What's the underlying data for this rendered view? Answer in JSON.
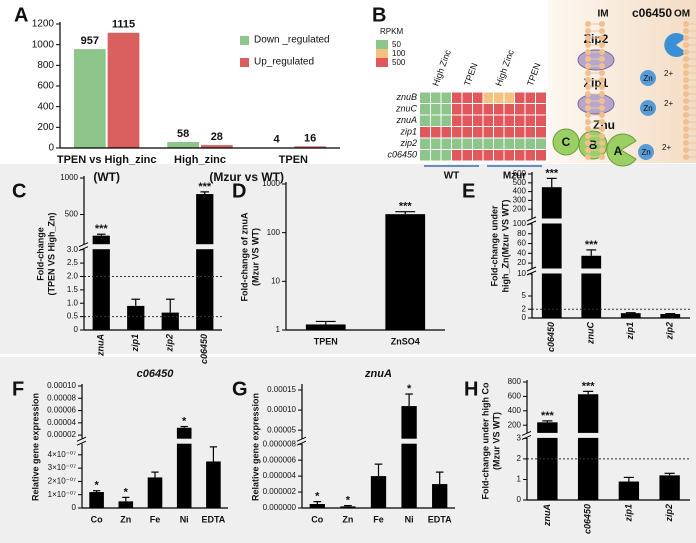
{
  "chart_data": [
    {
      "type": "bar",
      "label": "A",
      "groups": [
        {
          "label": "(WT)",
          "categories": [
            "TPEN vs High_zinc"
          ]
        },
        {
          "label": "(Mzur vs WT)",
          "categories": [
            "High_zinc",
            "TPEN"
          ]
        }
      ],
      "series": [
        {
          "name": "Down _regulated",
          "color": "#8dc58a",
          "values": [
            957,
            58,
            4
          ]
        },
        {
          "name": "Up_regulated",
          "color": "#d9605f",
          "values": [
            1115,
            28,
            16
          ]
        }
      ],
      "ylim": [
        0,
        1200
      ],
      "yticks": [
        0,
        200,
        400,
        600,
        800,
        1000,
        1200
      ],
      "legend": "upper right",
      "show_values": true
    },
    {
      "type": "heatmap",
      "label": "B",
      "rows": [
        "znuB",
        "znuC",
        "znuA",
        "zip1",
        "zip2",
        "c06450"
      ],
      "groups": [
        {
          "label": "WT",
          "columns": [
            "High Zinc",
            "TPEN"
          ]
        },
        {
          "label": "Mzur",
          "columns": [
            "High Zinc",
            "TPEN"
          ]
        }
      ],
      "values": [
        [
          50,
          500,
          100,
          500
        ],
        [
          50,
          500,
          500,
          500
        ],
        [
          50,
          500,
          500,
          500
        ],
        [
          500,
          500,
          500,
          500
        ],
        [
          50,
          50,
          50,
          50
        ],
        [
          50,
          500,
          500,
          500
        ]
      ],
      "legend_title": "RPKM",
      "scale": [
        {
          "value": 50,
          "color": "#8dc58a"
        },
        {
          "value": 100,
          "color": "#f4c27f"
        },
        {
          "value": 500,
          "color": "#e0585c"
        }
      ],
      "diagram": {
        "membranes": [
          "IM",
          "OM"
        ],
        "protein": "c06450",
        "transporters": [
          "Zip2",
          "Zip1",
          "Znu"
        ],
        "subunits": [
          "C",
          "B",
          "A"
        ],
        "ion": "Zn",
        "charge": "2+"
      }
    },
    {
      "type": "bar",
      "label": "C",
      "ylabel": [
        "Fold-change",
        "(TPEN VS High_Zn)"
      ],
      "categories": [
        "znuA",
        "zip1",
        "zip2",
        "c06450"
      ],
      "values": [
        210,
        0.9,
        0.65,
        780
      ],
      "errors": [
        20,
        0.25,
        0.5,
        30
      ],
      "significance": [
        "***",
        null,
        null,
        "***"
      ],
      "color": "#000000",
      "y_segments": [
        {
          "ylim": [
            0,
            3
          ],
          "yticks": [
            0,
            0.5,
            {
              "value": 1,
              "label": "1.0"
            },
            1.5,
            {
              "value": 2,
              "label": "2.0"
            },
            2.5,
            {
              "value": 3,
              "label": "3.0"
            }
          ]
        },
        {
          "ylim": [
            100,
            1000
          ],
          "yticks": [
            500,
            1000
          ]
        }
      ],
      "hlines": [
        2,
        0.5
      ]
    },
    {
      "type": "bar",
      "label": "D",
      "ylabel": [
        "Fold-change of znuA",
        "(Mzur VS WT)"
      ],
      "categories": [
        "TPEN",
        "ZnSO4"
      ],
      "values": [
        1.3,
        240
      ],
      "errors": [
        0.2,
        30
      ],
      "significance": [
        null,
        "***"
      ],
      "color": "#000000",
      "log": true,
      "ylim": [
        1,
        1000
      ],
      "yticks": [
        1,
        10,
        100,
        1000
      ]
    },
    {
      "type": "bar",
      "label": "E",
      "ylabel": [
        "Fold-change under",
        "high_Zn(Mzur VS WT)"
      ],
      "categories": [
        "c06450",
        "znuC",
        "zip1",
        "zip2"
      ],
      "values": [
        450,
        35,
        1.1,
        0.9
      ],
      "errors": [
        100,
        12,
        0.1,
        0.1
      ],
      "significance": [
        "***",
        "***",
        null,
        null
      ],
      "color": "#000000",
      "y_segments": [
        {
          "ylim": [
            0,
            10
          ],
          "yticks": [
            0,
            2,
            5,
            10
          ]
        },
        {
          "ylim": [
            10,
            100
          ],
          "yticks": [
            20,
            40,
            60,
            80
          ]
        },
        {
          "ylim": [
            100,
            600
          ],
          "yticks": [
            100,
            200,
            300,
            400,
            500,
            600
          ]
        }
      ],
      "hlines": [
        2
      ]
    },
    {
      "type": "bar",
      "label": "F",
      "title": "c06450",
      "ylabel": [
        "Relative gene expression"
      ],
      "categories": [
        "Co",
        "Zn",
        "Fe",
        "Ni",
        "EDTA"
      ],
      "values": [
        1.2e-07,
        5e-08,
        2.3e-07,
        3.2e-05,
        3.5e-07
      ],
      "errors": [
        1e-08,
        3e-08,
        4e-08,
        2e-06,
        1.1e-07
      ],
      "significance": [
        "*",
        "*",
        null,
        "*",
        null
      ],
      "color": "#000000",
      "y_segments": [
        {
          "ylim": [
            0,
            4.8e-07
          ],
          "yticks": [
            0,
            {
              "value": 1e-07,
              "label": "1×10⁻⁰⁷"
            },
            {
              "value": 2e-07,
              "label": "2×10⁻⁰⁷"
            },
            {
              "value": 3e-07,
              "label": "3×10⁻⁰⁷"
            },
            {
              "value": 4e-07,
              "label": "4×10⁻⁰⁷"
            }
          ]
        },
        {
          "ylim": [
            1.5e-05,
            0.0001
          ],
          "yticks": [
            2e-05,
            4e-05,
            6e-05,
            8e-05,
            {
              "value": 0.0001,
              "label": "0.00010"
            }
          ]
        }
      ]
    },
    {
      "type": "bar",
      "label": "G",
      "title": "znuA",
      "ylabel": [
        "Relative gene expression"
      ],
      "categories": [
        "Co",
        "Zn",
        "Fe",
        "Ni",
        "EDTA"
      ],
      "values": [
        5e-07,
        2e-07,
        4e-06,
        0.00011,
        3e-06
      ],
      "errors": [
        3e-07,
        1e-07,
        1.5e-06,
        3e-05,
        1.5e-06
      ],
      "significance": [
        "*",
        "*",
        null,
        "*",
        null
      ],
      "color": "#000000",
      "y_segments": [
        {
          "ylim": [
            0,
            8e-06
          ],
          "yticks": [
            {
              "value": 0,
              "label": "0.000000"
            },
            2e-06,
            4e-06,
            6e-06,
            8e-06
          ]
        },
        {
          "ylim": [
            3e-05,
            0.00016
          ],
          "yticks": [
            5e-05,
            {
              "value": 0.0001,
              "label": "0.00010"
            },
            0.00015
          ]
        }
      ]
    },
    {
      "type": "bar",
      "label": "H",
      "ylabel": [
        "Fold-change under high Co",
        "(Mzur VS WT)"
      ],
      "categories": [
        "znuA",
        "c06450",
        "zip1",
        "zip2"
      ],
      "values": [
        240,
        630,
        0.9,
        1.2
      ],
      "errors": [
        20,
        40,
        0.2,
        0.1
      ],
      "significance": [
        "***",
        "***",
        null,
        null
      ],
      "color": "#000000",
      "y_segments": [
        {
          "ylim": [
            0,
            3
          ],
          "yticks": [
            0,
            1,
            2,
            3
          ]
        },
        {
          "ylim": [
            100,
            800
          ],
          "yticks": [
            200,
            400,
            600,
            800
          ]
        }
      ],
      "hlines": [
        2
      ]
    }
  ]
}
